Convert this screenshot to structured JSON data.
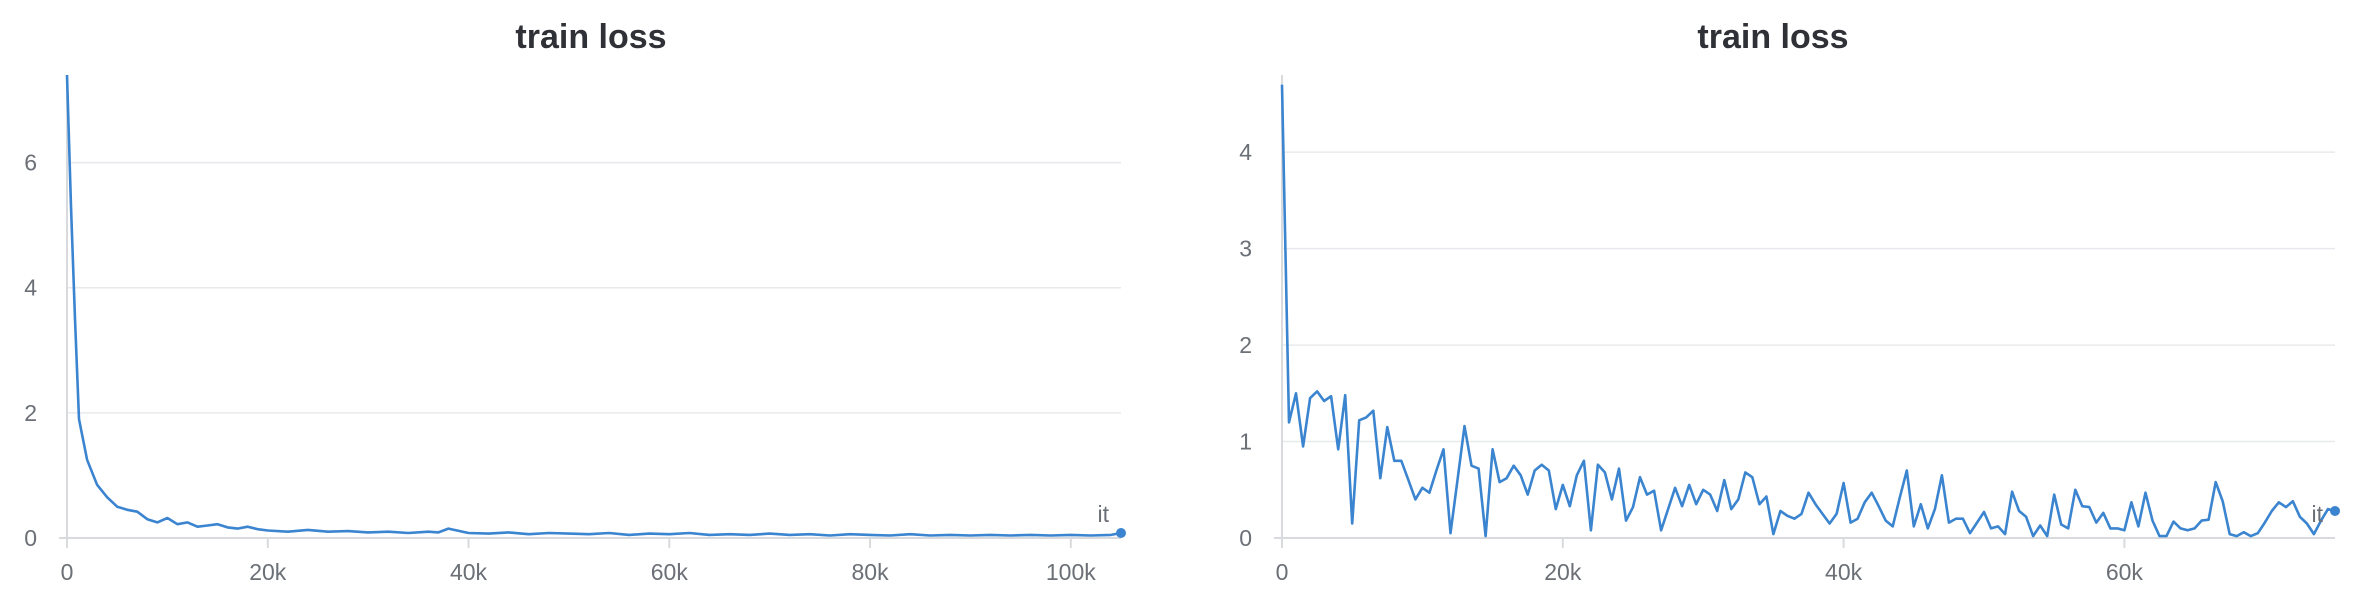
{
  "chart_data": [
    {
      "type": "line",
      "title": "train loss",
      "xlabel": "it",
      "ylabel": "",
      "xlim": [
        0,
        105000
      ],
      "ylim": [
        0,
        7.4
      ],
      "x_ticks": [
        0,
        20000,
        40000,
        60000,
        80000,
        100000
      ],
      "x_tick_labels": [
        "0",
        "20k",
        "40k",
        "60k",
        "80k",
        "100k"
      ],
      "y_ticks": [
        0,
        2,
        4,
        6
      ],
      "y_tick_labels": [
        "0",
        "2",
        "4",
        "6"
      ],
      "grid": true,
      "colors": {
        "line": "#3b84cf",
        "grid": "#e8e9ec",
        "axis": "#d9dadd"
      },
      "series": [
        {
          "x": [
            0,
            400,
            800,
            1200,
            2000,
            3000,
            4000,
            5000,
            6000,
            7000,
            8000,
            9000,
            10000,
            11000,
            12000,
            13000,
            14000,
            15000,
            16000,
            17000,
            18000,
            19000,
            20000,
            22000,
            24000,
            26000,
            28000,
            30000,
            32000,
            34000,
            36000,
            37000,
            38000,
            40000,
            42000,
            44000,
            46000,
            48000,
            50000,
            52000,
            54000,
            56000,
            58000,
            60000,
            62000,
            64000,
            66000,
            68000,
            70000,
            72000,
            74000,
            76000,
            78000,
            80000,
            82000,
            84000,
            86000,
            88000,
            90000,
            92000,
            94000,
            96000,
            98000,
            100000,
            102000,
            104000,
            105000
          ],
          "values": [
            7.4,
            5.3,
            3.5,
            1.9,
            1.25,
            0.85,
            0.65,
            0.5,
            0.45,
            0.42,
            0.3,
            0.25,
            0.32,
            0.22,
            0.25,
            0.18,
            0.2,
            0.22,
            0.17,
            0.15,
            0.18,
            0.14,
            0.12,
            0.1,
            0.13,
            0.1,
            0.11,
            0.09,
            0.1,
            0.08,
            0.1,
            0.09,
            0.15,
            0.08,
            0.07,
            0.09,
            0.06,
            0.08,
            0.07,
            0.06,
            0.08,
            0.05,
            0.07,
            0.06,
            0.08,
            0.05,
            0.06,
            0.05,
            0.07,
            0.05,
            0.06,
            0.04,
            0.06,
            0.05,
            0.04,
            0.06,
            0.04,
            0.05,
            0.04,
            0.05,
            0.04,
            0.05,
            0.04,
            0.05,
            0.04,
            0.05,
            0.08
          ]
        }
      ]
    },
    {
      "type": "line",
      "title": "train loss",
      "xlabel": "it",
      "ylabel": "",
      "xlim": [
        0,
        75000
      ],
      "ylim": [
        0,
        4.8
      ],
      "x_ticks": [
        0,
        20000,
        40000,
        60000
      ],
      "x_tick_labels": [
        "0",
        "20k",
        "40k",
        "60k"
      ],
      "y_ticks": [
        0,
        1,
        2,
        3,
        4
      ],
      "y_tick_labels": [
        "0",
        "1",
        "2",
        "3",
        "4"
      ],
      "grid": true,
      "colors": {
        "line": "#3b84cf",
        "grid": "#e8e9ec",
        "axis": "#d9dadd"
      },
      "series": [
        {
          "x": [
            0,
            500,
            1000,
            1500,
            2000,
            2500,
            3000,
            3500,
            4000,
            4500,
            5000,
            5500,
            6000,
            6500,
            7000,
            7500,
            8000,
            8500,
            9000,
            9500,
            10000,
            10500,
            11000,
            11500,
            12000,
            12500,
            13000,
            13500,
            14000,
            14500,
            15000,
            15500,
            16000,
            16500,
            17000,
            17500,
            18000,
            18500,
            19000,
            19500,
            20000,
            20500,
            21000,
            21500,
            22000,
            22500,
            23000,
            23500,
            24000,
            24500,
            25000,
            25500,
            26000,
            26500,
            27000,
            27500,
            28000,
            28500,
            29000,
            29500,
            30000,
            30500,
            31000,
            31500,
            32000,
            32500,
            33000,
            33500,
            34000,
            34500,
            35000,
            35500,
            36000,
            36500,
            37000,
            37500,
            38000,
            38500,
            39000,
            39500,
            40000,
            40500,
            41000,
            41500,
            42000,
            42500,
            43000,
            43500,
            44000,
            44500,
            45000,
            45500,
            46000,
            46500,
            47000,
            47500,
            48000,
            48500,
            49000,
            49500,
            50000,
            50500,
            51000,
            51500,
            52000,
            52500,
            53000,
            53500,
            54000,
            54500,
            55000,
            55500,
            56000,
            56500,
            57000,
            57500,
            58000,
            58500,
            59000,
            59500,
            60000,
            60500,
            61000,
            61500,
            62000,
            62500,
            63000,
            63500,
            64000,
            64500,
            65000,
            65500,
            66000,
            66500,
            67000,
            67500,
            68000,
            68500,
            69000,
            69500,
            70000,
            70500,
            71000,
            71500,
            72000,
            72500,
            73000,
            73500,
            74000,
            74500,
            75000
          ],
          "values": [
            4.7,
            1.2,
            1.5,
            0.95,
            1.45,
            1.52,
            1.42,
            1.47,
            0.92,
            1.48,
            0.15,
            1.22,
            1.25,
            1.32,
            0.62,
            1.15,
            0.8,
            0.8,
            0.6,
            0.4,
            0.52,
            0.47,
            0.7,
            0.92,
            0.05,
            0.6,
            1.16,
            0.75,
            0.72,
            0.02,
            0.92,
            0.58,
            0.62,
            0.75,
            0.65,
            0.45,
            0.7,
            0.76,
            0.7,
            0.3,
            0.55,
            0.33,
            0.65,
            0.8,
            0.08,
            0.76,
            0.68,
            0.4,
            0.72,
            0.18,
            0.32,
            0.63,
            0.45,
            0.49,
            0.08,
            0.3,
            0.52,
            0.33,
            0.55,
            0.35,
            0.5,
            0.45,
            0.28,
            0.6,
            0.3,
            0.4,
            0.68,
            0.63,
            0.35,
            0.43,
            0.04,
            0.28,
            0.23,
            0.2,
            0.25,
            0.47,
            0.35,
            0.25,
            0.15,
            0.25,
            0.57,
            0.16,
            0.2,
            0.37,
            0.47,
            0.33,
            0.18,
            0.12,
            0.42,
            0.7,
            0.12,
            0.35,
            0.1,
            0.3,
            0.65,
            0.16,
            0.2,
            0.2,
            0.05,
            0.16,
            0.27,
            0.1,
            0.12,
            0.04,
            0.48,
            0.28,
            0.22,
            0.02,
            0.13,
            0.02,
            0.45,
            0.14,
            0.1,
            0.5,
            0.33,
            0.32,
            0.16,
            0.26,
            0.1,
            0.1,
            0.08,
            0.37,
            0.12,
            0.47,
            0.18,
            0.02,
            0.02,
            0.17,
            0.1,
            0.08,
            0.1,
            0.18,
            0.19,
            0.58,
            0.38,
            0.04,
            0.02,
            0.06,
            0.02,
            0.05,
            0.16,
            0.28,
            0.37,
            0.32,
            0.38,
            0.22,
            0.15,
            0.04,
            0.18,
            0.3,
            0.28
          ]
        }
      ]
    }
  ]
}
